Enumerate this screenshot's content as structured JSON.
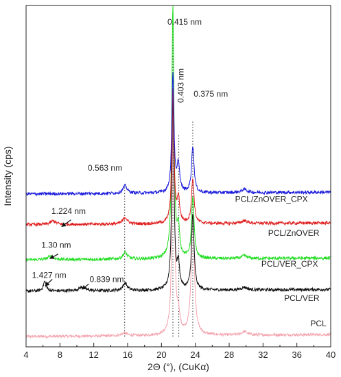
{
  "chart_data": {
    "type": "line",
    "title": "",
    "xlabel": "2Θ (°),  (CuKα)",
    "ylabel": "Intensity (cps)",
    "xlim": [
      4,
      40
    ],
    "xticks": [
      4,
      8,
      12,
      16,
      20,
      24,
      28,
      32,
      36,
      40
    ],
    "xtick_labels": [
      "4",
      "8",
      "12",
      "16",
      "20",
      "24",
      "28",
      "32",
      "36",
      "40"
    ],
    "grid": false,
    "legend": "none",
    "series": [
      {
        "name": "PCL",
        "color": "#f4a6b0",
        "baseline": 0.03,
        "slope": 0.006,
        "noise": 0.008,
        "peaks": [
          [
            15.6,
            0.008,
            0.4
          ],
          [
            21.4,
            0.69,
            0.16
          ],
          [
            22.0,
            0.05,
            0.2
          ],
          [
            23.7,
            0.35,
            0.22
          ],
          [
            29.8,
            0.01,
            0.4
          ]
        ]
      },
      {
        "name": "PCL/VER",
        "color": "#111111",
        "baseline": 0.163,
        "slope": 0.005,
        "noise": 0.009,
        "peaks": [
          [
            6.2,
            0.028,
            0.2
          ],
          [
            10.6,
            0.01,
            0.5
          ],
          [
            15.7,
            0.022,
            0.3
          ],
          [
            21.35,
            0.56,
            0.15
          ],
          [
            22.0,
            0.07,
            0.18
          ],
          [
            23.7,
            0.22,
            0.18
          ],
          [
            29.8,
            0.008,
            0.4
          ]
        ]
      },
      {
        "name": "PCL/VER_CPX",
        "color": "#22dd22",
        "baseline": 0.255,
        "slope": 0.005,
        "noise": 0.009,
        "peaks": [
          [
            6.9,
            0.01,
            0.4
          ],
          [
            15.7,
            0.02,
            0.3
          ],
          [
            21.35,
            0.74,
            0.15
          ],
          [
            22.0,
            0.08,
            0.18
          ],
          [
            23.7,
            0.18,
            0.18
          ],
          [
            29.8,
            0.008,
            0.4
          ]
        ]
      },
      {
        "name": "PCL/ZnOVER",
        "color": "#e02020",
        "baseline": 0.358,
        "slope": 0.005,
        "noise": 0.009,
        "peaks": [
          [
            7.2,
            0.01,
            0.4
          ],
          [
            15.7,
            0.02,
            0.3
          ],
          [
            21.35,
            0.39,
            0.15
          ],
          [
            22.0,
            0.07,
            0.18
          ],
          [
            23.7,
            0.13,
            0.18
          ],
          [
            29.8,
            0.008,
            0.4
          ]
        ]
      },
      {
        "name": "PCL/ZnOVER_CPX",
        "color": "#1a1adc",
        "baseline": 0.448,
        "slope": 0.005,
        "noise": 0.009,
        "peaks": [
          [
            15.7,
            0.022,
            0.3
          ],
          [
            21.35,
            0.35,
            0.15
          ],
          [
            22.0,
            0.08,
            0.18
          ],
          [
            23.7,
            0.135,
            0.18
          ],
          [
            29.8,
            0.01,
            0.4
          ]
        ]
      }
    ],
    "series_labels": [
      {
        "series": 0,
        "text": "PCL",
        "x": 37.6,
        "y": 0.06
      },
      {
        "series": 1,
        "text": "PCL/VER",
        "x": 34.5,
        "y": 0.135
      },
      {
        "series": 2,
        "text": "PCL/VER_CPX",
        "x": 31.8,
        "y": 0.235
      },
      {
        "series": 3,
        "text": "PCL/ZnOVER",
        "x": 32.6,
        "y": 0.325
      },
      {
        "series": 4,
        "text": "PCL/ZnOVER_CPX",
        "x": 28.7,
        "y": 0.425
      }
    ],
    "annotations": [
      {
        "text": "0.415 nm",
        "x": 20.7,
        "y": 0.944,
        "anchor": "start",
        "rotate": false
      },
      {
        "text": "0.403 nm",
        "x": 22.6,
        "y": 0.715,
        "anchor": "start",
        "rotate": true
      },
      {
        "text": "0.375 nm",
        "x": 23.8,
        "y": 0.733,
        "anchor": "start",
        "rotate": false
      },
      {
        "text": "0.563 nm",
        "x": 11.3,
        "y": 0.516,
        "anchor": "start",
        "rotate": false
      },
      {
        "text": "1.224 nm",
        "x": 7.0,
        "y": 0.39,
        "anchor": "start",
        "rotate": false
      },
      {
        "text": "1.30 nm",
        "x": 5.8,
        "y": 0.29,
        "anchor": "start",
        "rotate": false
      },
      {
        "text": "1.427 nm",
        "x": 4.7,
        "y": 0.202,
        "anchor": "start",
        "rotate": false
      },
      {
        "text": "0.839 nm",
        "x": 11.5,
        "y": 0.19,
        "anchor": "start",
        "rotate": false
      }
    ],
    "arrows": [
      {
        "from": [
          9.3,
          0.372
        ],
        "to": [
          8.2,
          0.352
        ]
      },
      {
        "from": [
          7.8,
          0.272
        ],
        "to": [
          6.8,
          0.258
        ]
      },
      {
        "from": [
          7.1,
          0.198
        ],
        "to": [
          6.25,
          0.178
        ]
      },
      {
        "from": [
          11.4,
          0.184
        ],
        "to": [
          10.6,
          0.168
        ]
      }
    ],
    "guide_lines": [
      {
        "x": 15.65,
        "y0": 0.03,
        "y1": 0.47,
        "color": "#333333"
      },
      {
        "x": 21.35,
        "y0": 0.03,
        "y1": 0.97,
        "color": "#333333"
      },
      {
        "x": 22.05,
        "y0": 0.03,
        "y1": 0.62,
        "color": "#333333"
      },
      {
        "x": 23.7,
        "y0": 0.03,
        "y1": 0.66,
        "color": "#333333"
      }
    ]
  }
}
